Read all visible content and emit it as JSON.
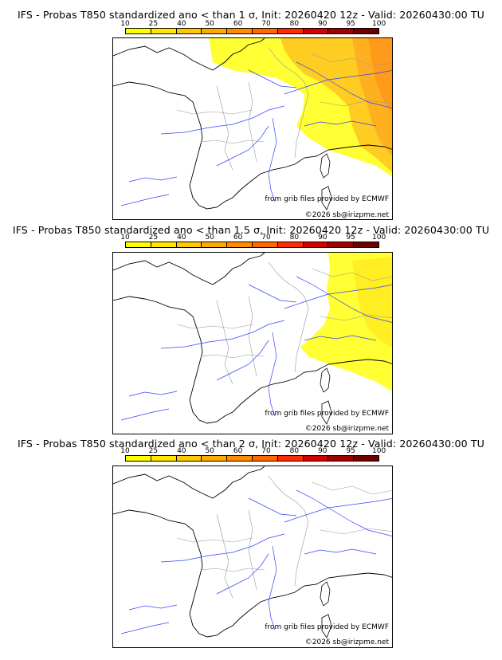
{
  "colorbar": {
    "ticks": [
      "10",
      "25",
      "40",
      "50",
      "60",
      "70",
      "80",
      "90",
      "95",
      "100"
    ],
    "colors": [
      "#ffff00",
      "#ffe500",
      "#ffc800",
      "#ffaa00",
      "#ff8c00",
      "#ff6a00",
      "#ff2a00",
      "#d40000",
      "#a00000",
      "#6e0000"
    ]
  },
  "panels": [
    {
      "title": "IFS - Probas T850  standardized ano < than 1 σ, Init: 20260420 12z - Valid: 20260430:00 TU",
      "credit_1": "from grib files provided by ECMWF",
      "credit_2": "©2026 sb@irizpme.net",
      "level": 1
    },
    {
      "title": "IFS - Probas T850  standardized ano < than 1.5 σ, Init: 20260420 12z - Valid: 20260430:00 TU",
      "credit_1": "from grib files provided by ECMWF",
      "credit_2": "©2026 sb@irizpme.net",
      "level": 2
    },
    {
      "title": "IFS - Probas T850  standardized ano < than 2 σ, Init: 20260420 12z - Valid: 20260430:00 TU",
      "credit_1": "from grib files provided by ECMWF",
      "credit_2": "©2026 sb@irizpme.net",
      "level": 3
    }
  ]
}
